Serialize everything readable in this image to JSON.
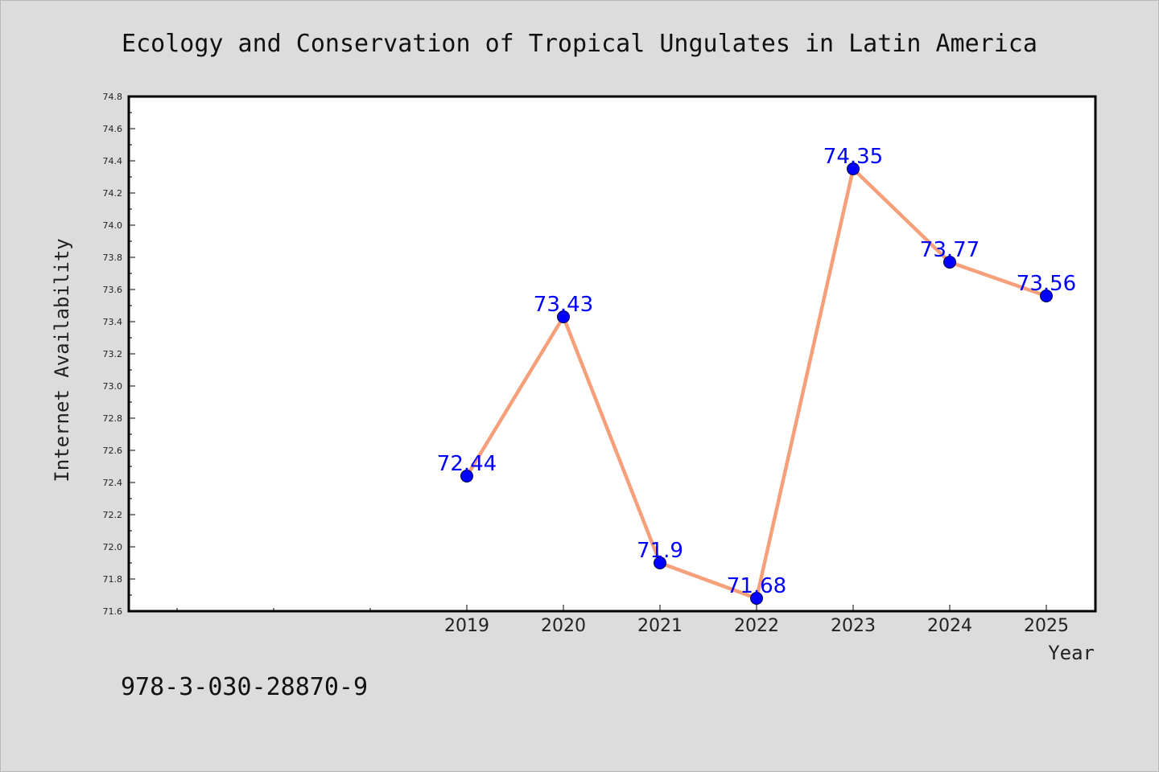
{
  "chart_data": {
    "type": "line",
    "title": "Ecology and Conservation of Tropical Ungulates in Latin America",
    "xlabel": "Year",
    "ylabel": "Internet Availability",
    "categories": [
      "2019",
      "2020",
      "2021",
      "2022",
      "2023",
      "2024",
      "2025"
    ],
    "values": [
      72.44,
      73.43,
      71.9,
      71.68,
      74.35,
      73.77,
      73.56
    ],
    "data_labels": [
      "72.44",
      "73.43",
      "71.9",
      "71.68",
      "74.35",
      "73.77",
      "73.56"
    ],
    "ylim": [
      71.6,
      74.8
    ],
    "yticks": [
      "71.6",
      "71.8",
      "72.0",
      "72.2",
      "72.4",
      "72.6",
      "72.8",
      "73.0",
      "73.2",
      "73.4",
      "73.6",
      "73.8",
      "74.0",
      "74.2",
      "74.4",
      "74.6",
      "74.8"
    ],
    "grid": false,
    "line_color": "#f5a07a",
    "marker_color": "#0000ff",
    "label_color": "#0000ff"
  },
  "footer": {
    "isbn": "978-3-030-28870-9"
  }
}
